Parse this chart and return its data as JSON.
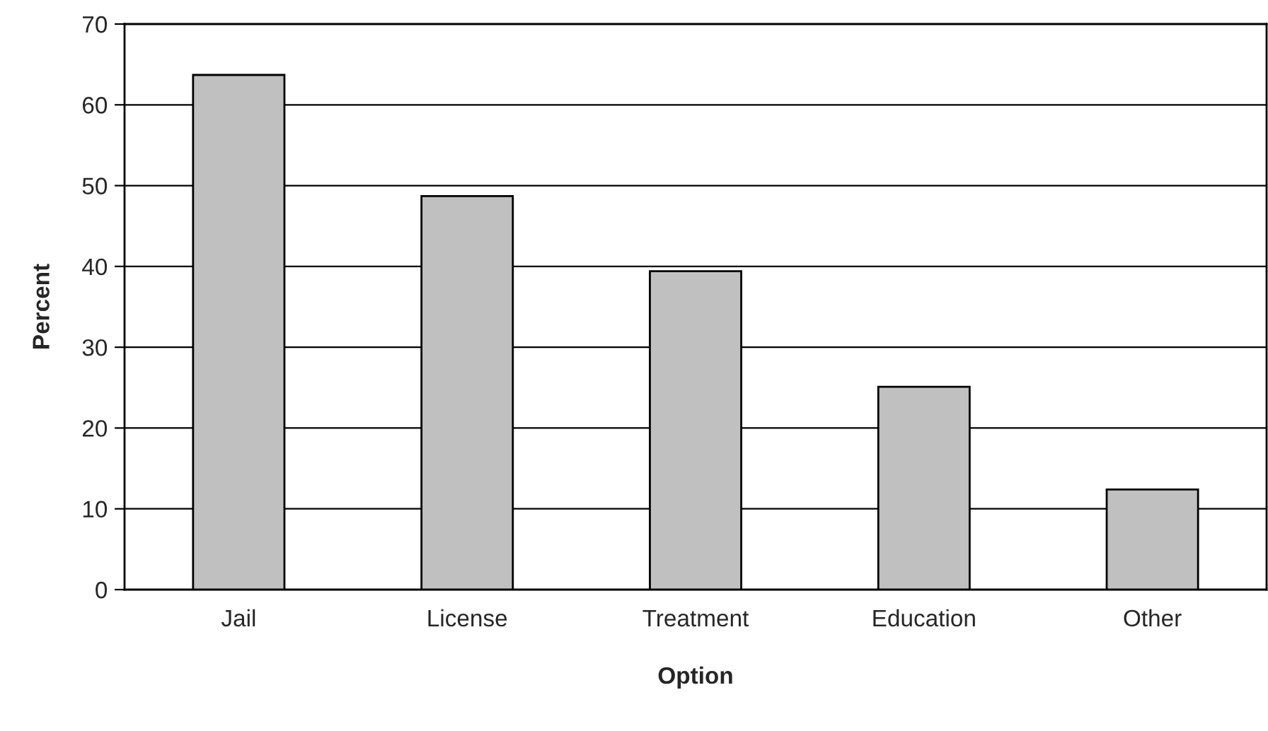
{
  "chart_data": {
    "type": "bar",
    "xlabel": "Option",
    "ylabel": "Percent",
    "categories": [
      "Jail",
      "License",
      "Treatment",
      "Education",
      "Other"
    ],
    "values": [
      63.7,
      48.7,
      39.4,
      25.1,
      12.4
    ],
    "color": "#c0c0c0",
    "ylim": [
      0,
      70
    ],
    "yticks": [
      0,
      10,
      20,
      30,
      40,
      50,
      60,
      70
    ],
    "grid": "y",
    "legend": false
  }
}
